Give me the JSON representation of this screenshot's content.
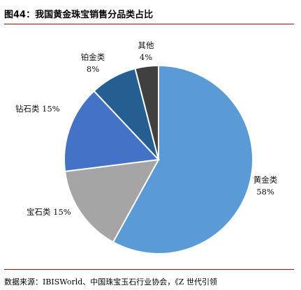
{
  "figure": {
    "title": "图44：我国黄金珠宝销售分品类占比",
    "source": "数据来源：IBISWorld、中国珠宝玉石行业协会，《Z 世代引领"
  },
  "chart_data": {
    "type": "pie",
    "title": "",
    "slices": [
      {
        "name": "黄金类",
        "value": 58,
        "label": "58%",
        "color": "#5b9bd5"
      },
      {
        "name": "宝石类",
        "value": 15,
        "label": "15%",
        "color": "#a5a5a5"
      },
      {
        "name": "钻石类",
        "value": 15,
        "label": "15%",
        "color": "#4472c4"
      },
      {
        "name": "铂金类",
        "value": 8,
        "label": "8%",
        "color": "#255e91"
      },
      {
        "name": "其他",
        "value": 4,
        "label": "4%",
        "color": "#404040"
      }
    ]
  }
}
